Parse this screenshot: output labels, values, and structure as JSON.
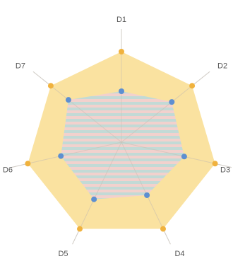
{
  "chart_data": {
    "type": "radar",
    "categories": [
      "D1",
      "D2",
      "D3",
      "D4",
      "D5",
      "D6",
      "D7"
    ],
    "range": [
      0,
      100
    ],
    "grid": false,
    "legend": "none",
    "series": [
      {
        "values": [
          80,
          80,
          85,
          85,
          85,
          85,
          80
        ],
        "color": "#f0b23e",
        "fill": "#f9dd8f"
      },
      {
        "values": [
          45,
          57,
          57,
          52,
          56,
          55,
          60
        ],
        "color": "#5d8fd1",
        "fill": "#b9d4dc"
      }
    ]
  }
}
